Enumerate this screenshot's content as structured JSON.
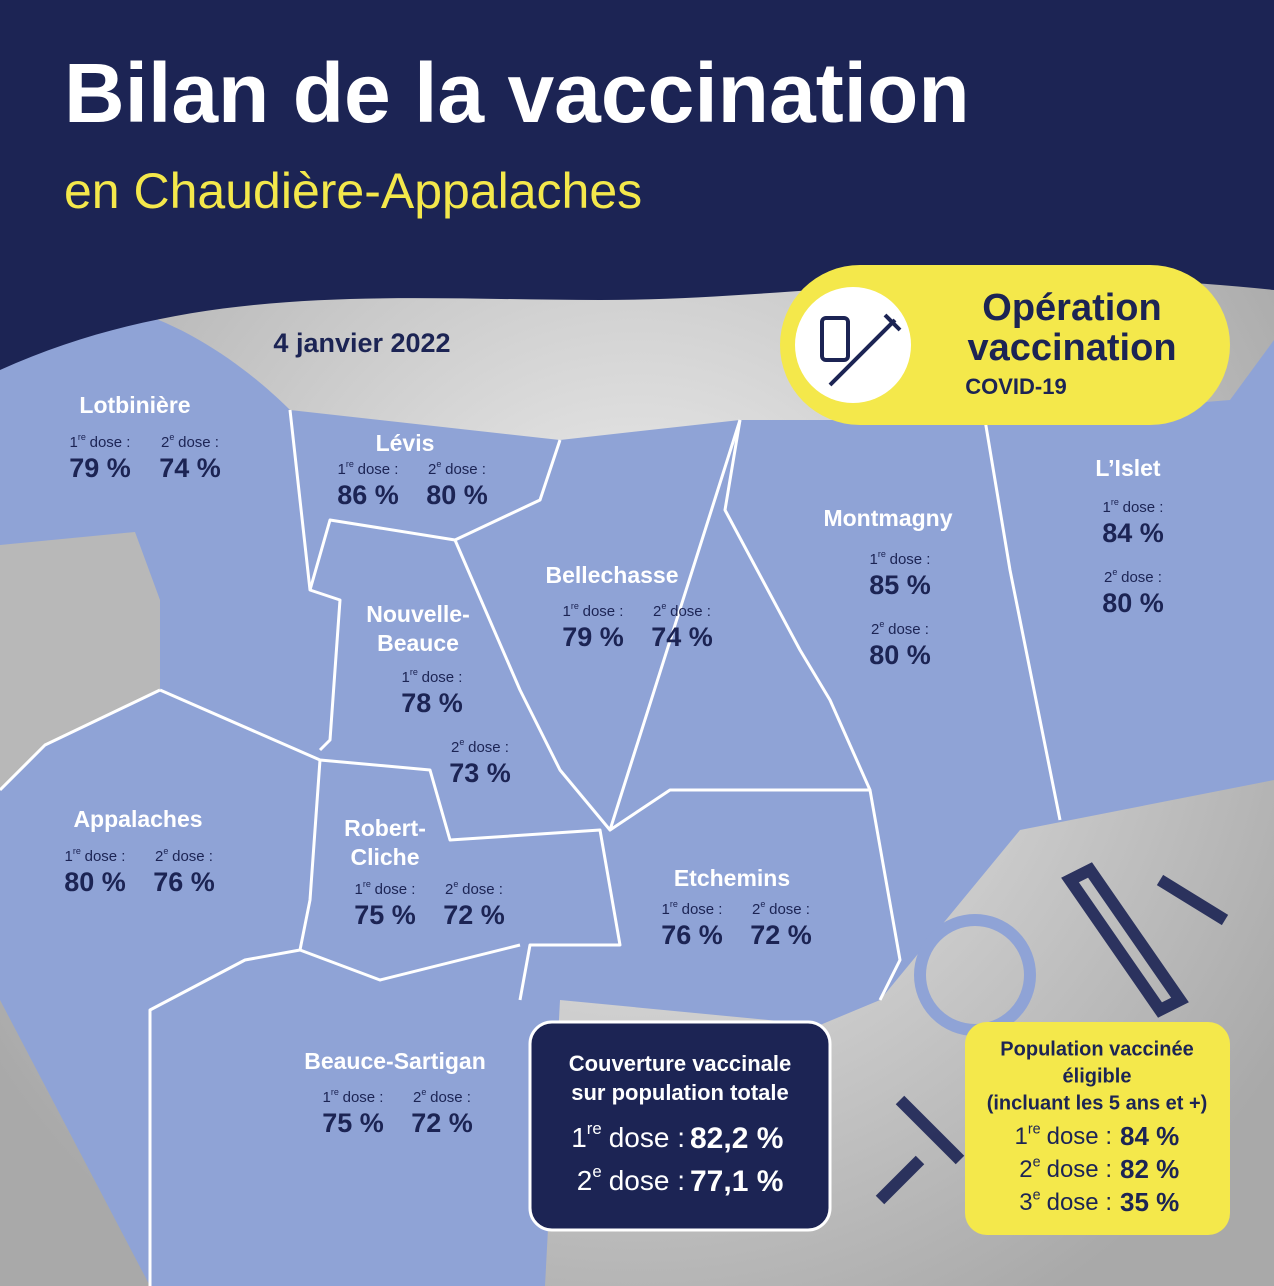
{
  "header": {
    "title": "Bilan de la vaccination",
    "subtitle": "en Chaudière-Appalaches"
  },
  "date": "4 janvier 2022",
  "badge": {
    "line1": "Opération",
    "line2": "vaccination",
    "line3": "COVID-19"
  },
  "dose_labels": [
    {
      "n": "1",
      "sup": "re",
      "word": "dose :"
    },
    {
      "n": "2",
      "sup": "e",
      "word": "dose :"
    },
    {
      "n": "3",
      "sup": "e",
      "word": "dose :"
    }
  ],
  "regions": [
    {
      "name": [
        "Lotbinière"
      ],
      "dose1": "79 %",
      "dose2": "74 %"
    },
    {
      "name": [
        "Lévis"
      ],
      "dose1": "86 %",
      "dose2": "80 %"
    },
    {
      "name": [
        "Nouvelle-",
        "Beauce"
      ],
      "dose1": "78 %",
      "dose2": "73 %"
    },
    {
      "name": [
        "Bellechasse"
      ],
      "dose1": "79 %",
      "dose2": "74 %"
    },
    {
      "name": [
        "Montmagny"
      ],
      "dose1": "85 %",
      "dose2": "80 %"
    },
    {
      "name": [
        "L’Islet"
      ],
      "dose1": "84 %",
      "dose2": "80 %"
    },
    {
      "name": [
        "Appalaches"
      ],
      "dose1": "80 %",
      "dose2": "76 %"
    },
    {
      "name": [
        "Robert-",
        "Cliche"
      ],
      "dose1": "75 %",
      "dose2": "72 %"
    },
    {
      "name": [
        "Etchemins"
      ],
      "dose1": "76 %",
      "dose2": "72 %"
    },
    {
      "name": [
        "Beauce-Sartigan"
      ],
      "dose1": "75 %",
      "dose2": "72 %"
    }
  ],
  "total_box": {
    "title_lines": [
      "Couverture vaccinale",
      "sur population totale"
    ],
    "dose1": "82,2 %",
    "dose2": "77,1 %"
  },
  "eligible_box": {
    "title_lines": [
      "Population vaccinée",
      "éligible",
      "(incluant les 5 ans et +)"
    ],
    "dose1": "84 %",
    "dose2": "82 %",
    "dose3": "35 %"
  }
}
